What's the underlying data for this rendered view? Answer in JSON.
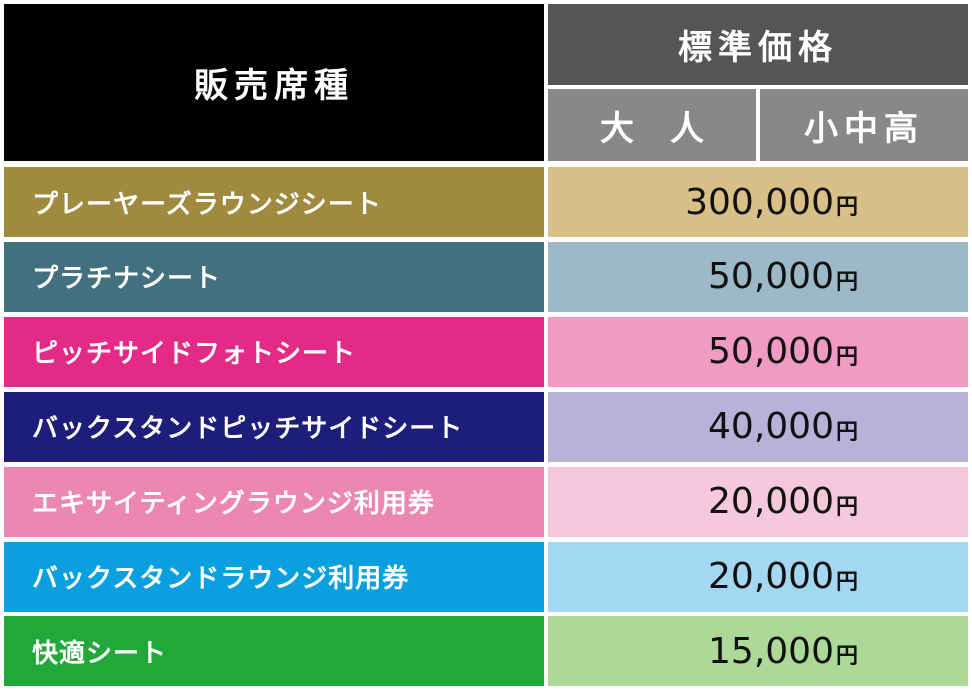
{
  "header": {
    "seat_type": "販売席種",
    "standard_price": "標準価格",
    "adult": "大人",
    "child": "小中高"
  },
  "table": {
    "rows": [
      {
        "name": "プレーヤーズラウンジシート",
        "price": "300,000",
        "unit": "円"
      },
      {
        "name": "プラチナシート",
        "price": "50,000",
        "unit": "円"
      },
      {
        "name": "ピッチサイドフォトシート",
        "price": "50,000",
        "unit": "円"
      },
      {
        "name": "バックスタンドピッチサイドシート",
        "price": "40,000",
        "unit": "円"
      },
      {
        "name": "エキサイティングラウンジ利用券",
        "price": "20,000",
        "unit": "円"
      },
      {
        "name": "バックスタンドラウンジ利用券",
        "price": "20,000",
        "unit": "円"
      },
      {
        "name": "快適シート",
        "price": "15,000",
        "unit": "円"
      }
    ]
  }
}
